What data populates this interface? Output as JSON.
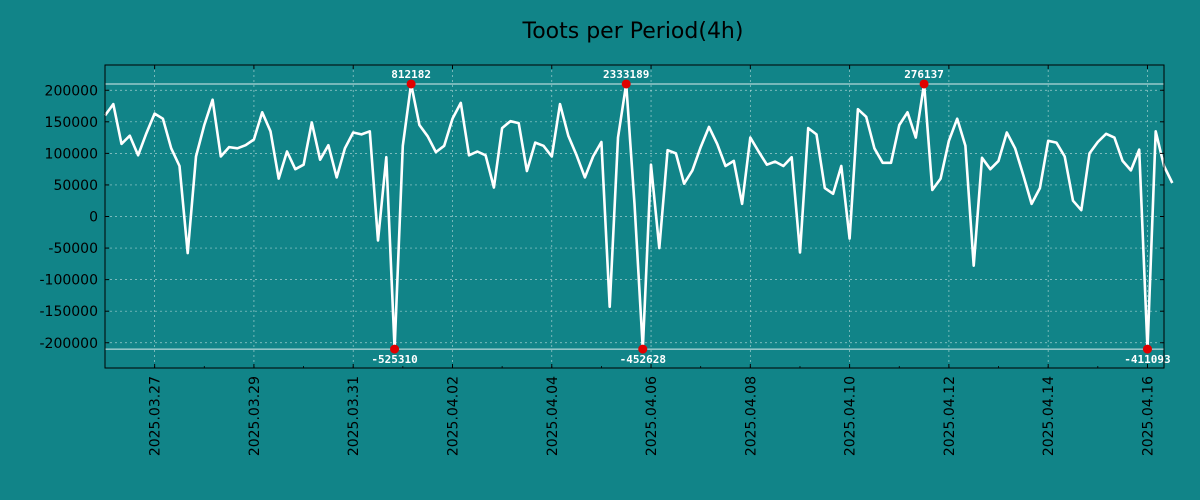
{
  "chart_data": {
    "type": "line",
    "title": "Toots per Period(4h)",
    "xlabel": "",
    "ylabel": "",
    "x_ticks": [
      "2025.03.27",
      "2025.03.29",
      "2025.03.31",
      "2025.04.02",
      "2025.04.04",
      "2025.04.06",
      "2025.04.08",
      "2025.04.10",
      "2025.04.12",
      "2025.04.14",
      "2025.04.16"
    ],
    "y_ticks": [
      "-200000",
      "-150000",
      "-100000",
      "-50000",
      "0",
      "50000",
      "100000",
      "150000",
      "200000"
    ],
    "y_tick_values": [
      -200000,
      -150000,
      -100000,
      -50000,
      0,
      50000,
      100000,
      150000,
      200000
    ],
    "xlim": [
      0,
      128
    ],
    "ylim": [
      -240000,
      240000
    ],
    "grid": true,
    "line_color": "#ffffff",
    "background": "#118488",
    "marker_color": "#e00000",
    "clip_high": 210000,
    "clip_low": -210000,
    "series": [
      {
        "name": "toots",
        "values": [
          160000,
          178000,
          115000,
          128000,
          97000,
          132000,
          163000,
          155000,
          108000,
          80000,
          -58000,
          95000,
          145000,
          185000,
          95000,
          110000,
          108000,
          113000,
          122000,
          165000,
          135000,
          60000,
          103000,
          75000,
          82000,
          149000,
          90000,
          113000,
          62000,
          108000,
          133000,
          130000,
          135000,
          -38000,
          94000,
          -210000,
          112000,
          210000,
          145000,
          127000,
          102000,
          112000,
          155000,
          180000,
          97000,
          103000,
          97000,
          46000,
          140000,
          151000,
          148000,
          72000,
          117000,
          112000,
          95000,
          178000,
          128000,
          97000,
          62000,
          95000,
          118000,
          -143000,
          125000,
          210000,
          20000,
          -210000,
          82000,
          -50000,
          105000,
          100000,
          52000,
          73000,
          110000,
          142000,
          115000,
          80000,
          88000,
          20000,
          125000,
          103000,
          82000,
          87000,
          80000,
          94000,
          -57000,
          140000,
          130000,
          45000,
          36000,
          80000,
          -35000,
          170000,
          158000,
          108000,
          85000,
          85000,
          145000,
          165000,
          125000,
          210000,
          42000,
          60000,
          120000,
          155000,
          112000,
          -78000,
          93000,
          75000,
          88000,
          133000,
          108000,
          65000,
          20000,
          45000,
          120000,
          117000,
          95000,
          25000,
          10000,
          100000,
          118000,
          131000,
          125000,
          88000,
          73000,
          106000,
          -210000,
          135000,
          80000,
          53000
        ]
      }
    ],
    "annotations": [
      {
        "index": 37,
        "value": 210000,
        "label": "812182",
        "position": "above"
      },
      {
        "index": 35,
        "value": -210000,
        "label": "-525310",
        "position": "below"
      },
      {
        "index": 63,
        "value": 210000,
        "label": "2333189",
        "position": "above"
      },
      {
        "index": 65,
        "value": -210000,
        "label": "-452628",
        "position": "below"
      },
      {
        "index": 99,
        "value": 210000,
        "label": "276137",
        "position": "above"
      },
      {
        "index": 126,
        "value": -210000,
        "label": "-411093",
        "position": "below"
      }
    ]
  }
}
